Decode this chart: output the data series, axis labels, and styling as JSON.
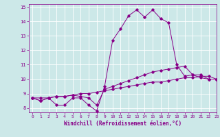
{
  "xlabel": "Windchill (Refroidissement éolien,°C)",
  "xlim": [
    -0.5,
    23
  ],
  "ylim": [
    7.7,
    15.2
  ],
  "yticks": [
    8,
    9,
    10,
    11,
    12,
    13,
    14,
    15
  ],
  "xticks": [
    0,
    1,
    2,
    3,
    4,
    5,
    6,
    7,
    8,
    9,
    10,
    11,
    12,
    13,
    14,
    15,
    16,
    17,
    18,
    19,
    20,
    21,
    22,
    23
  ],
  "bg_color": "#cce8e8",
  "line_color": "#880088",
  "grid_color": "#ffffff",
  "series": [
    [
      8.7,
      8.5,
      8.7,
      8.2,
      8.2,
      8.7,
      8.7,
      8.2,
      7.8,
      9.5,
      12.7,
      13.5,
      14.4,
      14.8,
      14.3,
      14.8,
      14.2,
      13.9,
      11.0,
      10.2,
      10.3,
      10.3,
      10.0,
      10.0
    ],
    [
      8.7,
      8.5,
      8.7,
      8.8,
      8.8,
      8.9,
      8.8,
      8.7,
      8.2,
      9.3,
      9.5,
      9.7,
      9.9,
      10.1,
      10.3,
      10.5,
      10.6,
      10.7,
      10.8,
      10.9,
      10.3,
      10.1,
      10.0,
      10.0
    ],
    [
      8.7,
      8.7,
      8.7,
      8.8,
      8.8,
      8.9,
      9.0,
      9.0,
      9.1,
      9.2,
      9.3,
      9.4,
      9.5,
      9.6,
      9.7,
      9.8,
      9.8,
      9.9,
      10.0,
      10.1,
      10.1,
      10.2,
      10.2,
      10.0
    ]
  ]
}
